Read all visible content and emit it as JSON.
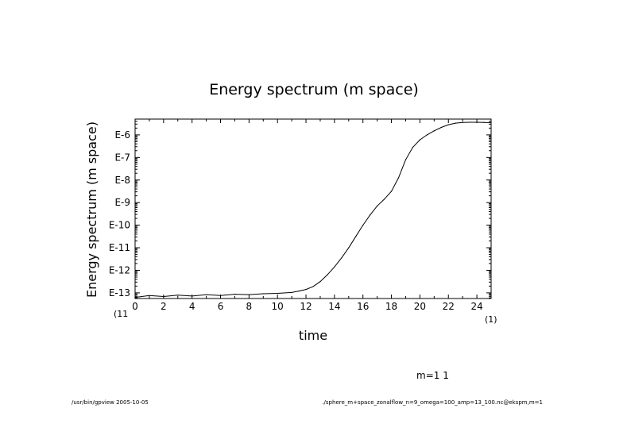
{
  "chart_data": {
    "type": "line",
    "title": "Energy spectrum (m space)",
    "xlabel": "time",
    "ylabel": "Energy spectrum (m space)",
    "x_ticks": [
      "0",
      "2",
      "4",
      "6",
      "8",
      "10",
      "12",
      "14",
      "16",
      "18",
      "20",
      "22",
      "24"
    ],
    "y_ticks": [
      "E-13",
      "E-12",
      "E-11",
      "E-10",
      "E-9",
      "E-8",
      "E-7",
      "E-6"
    ],
    "x_lim": [
      0,
      25
    ],
    "y_lim_log10": [
      -13.25,
      -5.3
    ],
    "x_unit_marker": "(1)",
    "x_origin_marker": "(11",
    "legend": "m=1 1",
    "series": [
      {
        "name": "m=1",
        "x": [
          0,
          1,
          2,
          3,
          4,
          5,
          6,
          7,
          8,
          9,
          10,
          11,
          11.5,
          12,
          12.5,
          13,
          13.5,
          14,
          14.5,
          15,
          15.5,
          16,
          16.5,
          17,
          17.5,
          18,
          18.5,
          19,
          19.5,
          20,
          20.5,
          21,
          21.5,
          22,
          22.5,
          23,
          23.5,
          24,
          24.5,
          25
        ],
        "y_log10": [
          -13.2,
          -13.12,
          -13.16,
          -13.1,
          -13.14,
          -13.08,
          -13.12,
          -13.06,
          -13.08,
          -13.04,
          -13.02,
          -12.98,
          -12.92,
          -12.85,
          -12.72,
          -12.5,
          -12.2,
          -11.85,
          -11.45,
          -11.0,
          -10.5,
          -10.0,
          -9.55,
          -9.15,
          -8.85,
          -8.5,
          -7.9,
          -7.1,
          -6.55,
          -6.22,
          -6.0,
          -5.82,
          -5.67,
          -5.55,
          -5.48,
          -5.45,
          -5.44,
          -5.44,
          -5.45,
          -5.46
        ]
      }
    ]
  },
  "footer": {
    "left": "/usr/bin/gpview  2005-10-05",
    "right": "./sphere_m+space_zonalflow_n=9_omega=100_amp=13_100.nc@ekspm,m=1"
  }
}
